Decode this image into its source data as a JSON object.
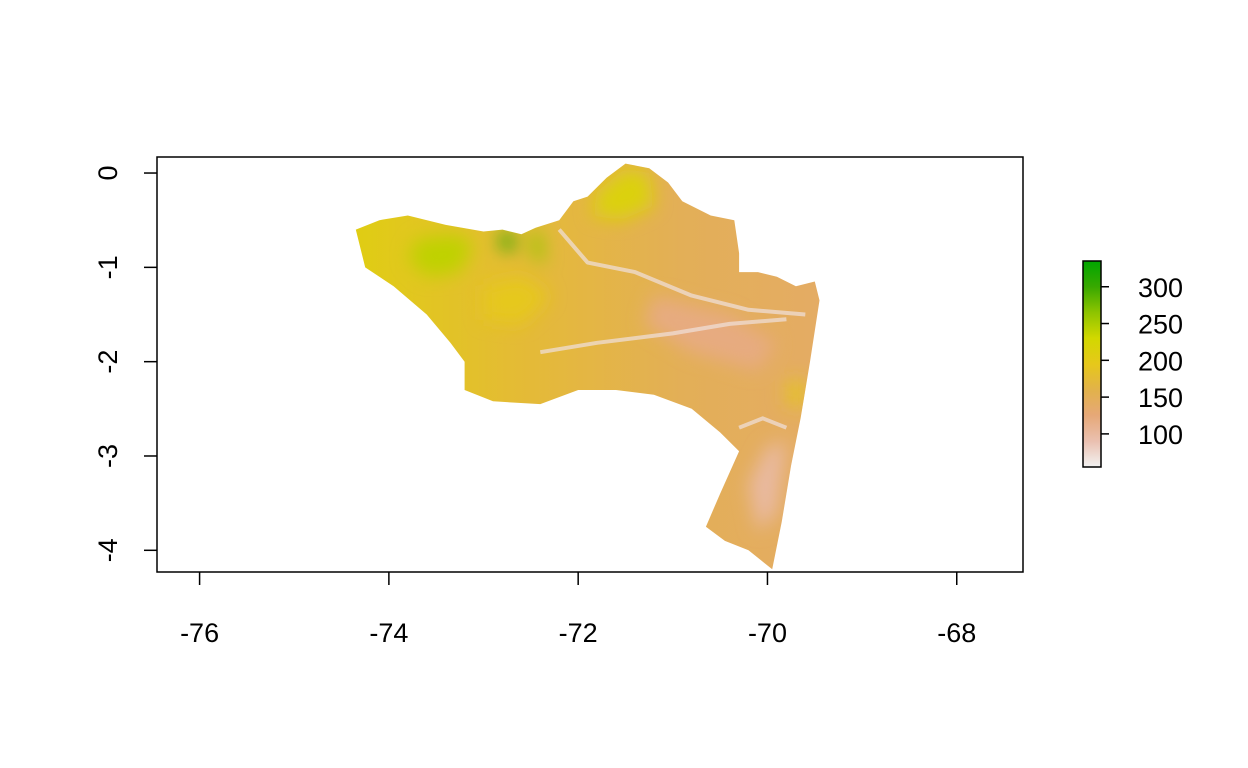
{
  "map": {
    "x_ticks": [
      {
        "value": -76,
        "label": "-76"
      },
      {
        "value": -74,
        "label": "-74"
      },
      {
        "value": -72,
        "label": "-72"
      },
      {
        "value": -70,
        "label": "-70"
      },
      {
        "value": -68,
        "label": "-68"
      }
    ],
    "y_ticks": [
      {
        "value": 0,
        "label": "0"
      },
      {
        "value": -1,
        "label": "-1"
      },
      {
        "value": -2,
        "label": "-2"
      },
      {
        "value": -3,
        "label": "-3"
      },
      {
        "value": -4,
        "label": "-4"
      }
    ],
    "xlim": [
      -76.45,
      -67.3
    ],
    "ylim": [
      -4.23,
      0.17
    ],
    "grid": false,
    "legend_position": "right"
  },
  "legend": {
    "range": [
      55,
      335
    ],
    "ticks": [
      {
        "value": 300,
        "label": "300"
      },
      {
        "value": 250,
        "label": "250"
      },
      {
        "value": 200,
        "label": "200"
      },
      {
        "value": 150,
        "label": "150"
      },
      {
        "value": 100,
        "label": "100"
      }
    ],
    "colors": [
      "#f2f2f2",
      "#eac0b0",
      "#e6a878",
      "#e2b24a",
      "#e6c81a",
      "#d2d800",
      "#8ec400",
      "#38a800",
      "#00a600"
    ]
  },
  "region": {
    "outline": [
      [
        -74.35,
        -0.6
      ],
      [
        -74.1,
        -0.5
      ],
      [
        -73.8,
        -0.45
      ],
      [
        -73.4,
        -0.55
      ],
      [
        -73.0,
        -0.62
      ],
      [
        -72.8,
        -0.6
      ],
      [
        -72.6,
        -0.65
      ],
      [
        -72.45,
        -0.58
      ],
      [
        -72.2,
        -0.5
      ],
      [
        -72.05,
        -0.3
      ],
      [
        -71.9,
        -0.25
      ],
      [
        -71.7,
        -0.05
      ],
      [
        -71.5,
        0.1
      ],
      [
        -71.25,
        0.05
      ],
      [
        -71.05,
        -0.1
      ],
      [
        -70.9,
        -0.3
      ],
      [
        -70.6,
        -0.45
      ],
      [
        -70.35,
        -0.5
      ],
      [
        -70.3,
        -0.85
      ],
      [
        -70.3,
        -1.05
      ],
      [
        -70.1,
        -1.05
      ],
      [
        -69.9,
        -1.1
      ],
      [
        -69.7,
        -1.2
      ],
      [
        -69.5,
        -1.15
      ],
      [
        -69.45,
        -1.35
      ],
      [
        -69.55,
        -2.0
      ],
      [
        -69.65,
        -2.6
      ],
      [
        -69.75,
        -3.1
      ],
      [
        -69.85,
        -3.7
      ],
      [
        -69.95,
        -4.2
      ],
      [
        -70.2,
        -4.0
      ],
      [
        -70.45,
        -3.9
      ],
      [
        -70.65,
        -3.75
      ],
      [
        -70.5,
        -3.4
      ],
      [
        -70.3,
        -2.95
      ],
      [
        -70.5,
        -2.75
      ],
      [
        -70.8,
        -2.5
      ],
      [
        -71.2,
        -2.35
      ],
      [
        -71.6,
        -2.3
      ],
      [
        -72.0,
        -2.3
      ],
      [
        -72.4,
        -2.45
      ],
      [
        -72.9,
        -2.42
      ],
      [
        -73.2,
        -2.3
      ],
      [
        -73.2,
        -2.0
      ],
      [
        -73.35,
        -1.8
      ],
      [
        -73.6,
        -1.5
      ],
      [
        -73.95,
        -1.2
      ],
      [
        -74.25,
        -1.0
      ],
      [
        -74.35,
        -0.6
      ]
    ],
    "elevation_zones": [
      {
        "value": 240,
        "points": [
          [
            -73.7,
            -0.7
          ],
          [
            -73.3,
            -0.65
          ],
          [
            -73.1,
            -0.75
          ],
          [
            -73.25,
            -1.05
          ],
          [
            -73.6,
            -1.1
          ],
          [
            -73.8,
            -0.9
          ]
        ]
      },
      {
        "value": 300,
        "points": [
          [
            -72.8,
            -0.62
          ],
          [
            -72.65,
            -0.68
          ],
          [
            -72.7,
            -0.85
          ],
          [
            -72.85,
            -0.75
          ]
        ]
      },
      {
        "value": 260,
        "points": [
          [
            -72.5,
            -0.65
          ],
          [
            -72.4,
            -0.6
          ],
          [
            -72.35,
            -0.95
          ],
          [
            -72.48,
            -0.9
          ]
        ]
      },
      {
        "value": 215,
        "points": [
          [
            -71.8,
            -0.2
          ],
          [
            -71.5,
            0.05
          ],
          [
            -71.25,
            0.0
          ],
          [
            -71.2,
            -0.35
          ],
          [
            -71.55,
            -0.5
          ],
          [
            -71.85,
            -0.45
          ]
        ]
      },
      {
        "value": 195,
        "points": [
          [
            -73.0,
            -1.2
          ],
          [
            -72.6,
            -1.1
          ],
          [
            -72.3,
            -1.3
          ],
          [
            -72.6,
            -1.6
          ],
          [
            -73.0,
            -1.55
          ]
        ]
      },
      {
        "value": 120,
        "points": [
          [
            -71.2,
            -1.3
          ],
          [
            -70.4,
            -1.5
          ],
          [
            -69.9,
            -1.8
          ],
          [
            -70.1,
            -2.1
          ],
          [
            -70.8,
            -1.9
          ],
          [
            -71.3,
            -1.6
          ]
        ]
      },
      {
        "value": 100,
        "points": [
          [
            -70.0,
            -2.9
          ],
          [
            -69.8,
            -2.85
          ],
          [
            -69.9,
            -3.6
          ],
          [
            -70.1,
            -3.8
          ],
          [
            -70.2,
            -3.3
          ]
        ]
      },
      {
        "value": 185,
        "points": [
          [
            -69.8,
            -2.2
          ],
          [
            -69.6,
            -2.2
          ],
          [
            -69.6,
            -2.5
          ],
          [
            -69.8,
            -2.45
          ]
        ]
      }
    ],
    "rivers": [
      [
        [
          -72.2,
          -0.6
        ],
        [
          -71.9,
          -0.95
        ],
        [
          -71.4,
          -1.05
        ],
        [
          -70.8,
          -1.3
        ],
        [
          -70.2,
          -1.45
        ],
        [
          -69.6,
          -1.5
        ]
      ],
      [
        [
          -72.4,
          -1.9
        ],
        [
          -71.8,
          -1.8
        ],
        [
          -71.0,
          -1.7
        ],
        [
          -70.4,
          -1.6
        ],
        [
          -69.8,
          -1.55
        ]
      ],
      [
        [
          -70.3,
          -2.7
        ],
        [
          -70.05,
          -2.6
        ],
        [
          -69.8,
          -2.7
        ]
      ]
    ]
  }
}
